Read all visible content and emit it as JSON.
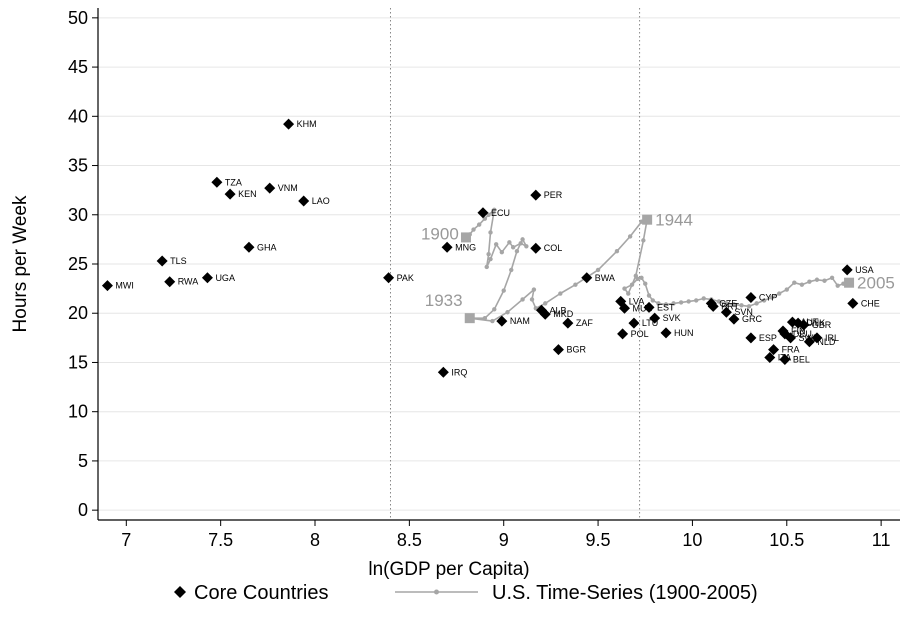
{
  "chart_data": {
    "type": "scatter",
    "xlabel": "ln(GDP per Capita)",
    "ylabel": "Hours per Week",
    "xlim": [
      6.85,
      11.1
    ],
    "ylim": [
      -1,
      51
    ],
    "x_ticks": [
      7,
      7.5,
      8,
      8.5,
      9,
      9.5,
      10,
      10.5,
      11
    ],
    "y_ticks": [
      0,
      5,
      10,
      15,
      20,
      25,
      30,
      35,
      40,
      45,
      50
    ],
    "grid": "horizontal",
    "reference_lines_x": [
      8.4,
      9.72
    ],
    "colors": {
      "core": "#000000",
      "us_series": "#a6a6a6"
    },
    "series": [
      {
        "name": "Core Countries",
        "marker": "diamond",
        "points": [
          {
            "label": "MWI",
            "x": 6.9,
            "y": 22.8
          },
          {
            "label": "TLS",
            "x": 7.19,
            "y": 25.3
          },
          {
            "label": "RWA",
            "x": 7.23,
            "y": 23.2
          },
          {
            "label": "UGA",
            "x": 7.43,
            "y": 23.6
          },
          {
            "label": "TZA",
            "x": 7.48,
            "y": 33.3
          },
          {
            "label": "KEN",
            "x": 7.55,
            "y": 32.1
          },
          {
            "label": "GHA",
            "x": 7.65,
            "y": 26.7
          },
          {
            "label": "VNM",
            "x": 7.76,
            "y": 32.7
          },
          {
            "label": "KHM",
            "x": 7.86,
            "y": 39.2
          },
          {
            "label": "LAO",
            "x": 7.94,
            "y": 31.4
          },
          {
            "label": "PAK",
            "x": 8.39,
            "y": 23.6
          },
          {
            "label": "IRQ",
            "x": 8.68,
            "y": 14.0
          },
          {
            "label": "MNG",
            "x": 8.7,
            "y": 26.7
          },
          {
            "label": "ECU",
            "x": 8.89,
            "y": 30.2
          },
          {
            "label": "NAM",
            "x": 8.99,
            "y": 19.2
          },
          {
            "label": "COL",
            "x": 9.17,
            "y": 26.6
          },
          {
            "label": "PER",
            "x": 9.17,
            "y": 32.0
          },
          {
            "label": "ALB",
            "x": 9.2,
            "y": 20.3
          },
          {
            "label": "MKD",
            "x": 9.22,
            "y": 19.9
          },
          {
            "label": "BGR",
            "x": 9.29,
            "y": 16.3
          },
          {
            "label": "ZAF",
            "x": 9.34,
            "y": 19.0
          },
          {
            "label": "BWA",
            "x": 9.44,
            "y": 23.6
          },
          {
            "label": "POL",
            "x": 9.63,
            "y": 17.9
          },
          {
            "label": "LVA",
            "x": 9.62,
            "y": 21.2
          },
          {
            "label": "MUS",
            "x": 9.64,
            "y": 20.5
          },
          {
            "label": "LTU",
            "x": 9.69,
            "y": 19.0
          },
          {
            "label": "EST",
            "x": 9.77,
            "y": 20.6
          },
          {
            "label": "SVK",
            "x": 9.8,
            "y": 19.5
          },
          {
            "label": "HUN",
            "x": 9.86,
            "y": 18.0
          },
          {
            "label": "CZE",
            "x": 10.1,
            "y": 21.0
          },
          {
            "label": "PRT",
            "x": 10.11,
            "y": 20.7
          },
          {
            "label": "SVN",
            "x": 10.18,
            "y": 20.1
          },
          {
            "label": "GRC",
            "x": 10.22,
            "y": 19.4
          },
          {
            "label": "CYP",
            "x": 10.31,
            "y": 21.6
          },
          {
            "label": "ESP",
            "x": 10.31,
            "y": 17.5
          },
          {
            "label": "ITA",
            "x": 10.41,
            "y": 15.5
          },
          {
            "label": "FRA",
            "x": 10.43,
            "y": 16.3
          },
          {
            "label": "BEL",
            "x": 10.49,
            "y": 15.3
          },
          {
            "label": "AUT",
            "x": 10.53,
            "y": 19.1
          },
          {
            "label": "DNK",
            "x": 10.56,
            "y": 19.0
          },
          {
            "label": "DEU",
            "x": 10.49,
            "y": 17.9
          },
          {
            "label": "SWE",
            "x": 10.52,
            "y": 17.5
          },
          {
            "label": "FIN",
            "x": 10.48,
            "y": 18.2
          },
          {
            "label": "GBR",
            "x": 10.59,
            "y": 18.8
          },
          {
            "label": "NLD",
            "x": 10.62,
            "y": 17.1
          },
          {
            "label": "IRL",
            "x": 10.66,
            "y": 17.5
          },
          {
            "label": "USA",
            "x": 10.82,
            "y": 24.4
          },
          {
            "label": "CHE",
            "x": 10.85,
            "y": 21.0
          }
        ]
      },
      {
        "name": "U.S. Time-Series (1900-2005)",
        "marker": "line-dot",
        "points": [
          {
            "x": 8.8,
            "y": 27.7
          },
          {
            "x": 8.82,
            "y": 28.0
          },
          {
            "x": 8.84,
            "y": 28.5
          },
          {
            "x": 8.87,
            "y": 29.0
          },
          {
            "x": 8.9,
            "y": 29.6
          },
          {
            "x": 8.92,
            "y": 30.0
          },
          {
            "x": 8.95,
            "y": 30.5
          },
          {
            "x": 8.93,
            "y": 28.2
          },
          {
            "x": 8.92,
            "y": 26.0
          },
          {
            "x": 8.91,
            "y": 24.7
          },
          {
            "x": 8.93,
            "y": 25.5
          },
          {
            "x": 8.96,
            "y": 27.0
          },
          {
            "x": 8.99,
            "y": 26.2
          },
          {
            "x": 9.03,
            "y": 27.2
          },
          {
            "x": 9.05,
            "y": 26.7
          },
          {
            "x": 9.09,
            "y": 27.1
          },
          {
            "x": 9.12,
            "y": 26.8
          },
          {
            "x": 9.1,
            "y": 27.5
          },
          {
            "x": 9.07,
            "y": 26.3
          },
          {
            "x": 9.04,
            "y": 24.4
          },
          {
            "x": 9.0,
            "y": 22.3
          },
          {
            "x": 8.95,
            "y": 20.4
          },
          {
            "x": 8.9,
            "y": 19.5
          },
          {
            "x": 8.82,
            "y": 19.5
          },
          {
            "x": 8.94,
            "y": 19.2
          },
          {
            "x": 9.02,
            "y": 20.1
          },
          {
            "x": 9.1,
            "y": 21.4
          },
          {
            "x": 9.16,
            "y": 22.4
          },
          {
            "x": 9.15,
            "y": 21.4
          },
          {
            "x": 9.17,
            "y": 20.5
          },
          {
            "x": 9.22,
            "y": 21.0
          },
          {
            "x": 9.3,
            "y": 22.0
          },
          {
            "x": 9.38,
            "y": 22.9
          },
          {
            "x": 9.5,
            "y": 24.4
          },
          {
            "x": 9.6,
            "y": 26.3
          },
          {
            "x": 9.67,
            "y": 27.8
          },
          {
            "x": 9.73,
            "y": 29.3
          },
          {
            "x": 9.76,
            "y": 29.5
          },
          {
            "x": 9.74,
            "y": 27.4
          },
          {
            "x": 9.7,
            "y": 23.8
          },
          {
            "x": 9.66,
            "y": 22.0
          },
          {
            "x": 9.64,
            "y": 22.5
          },
          {
            "x": 9.68,
            "y": 22.9
          },
          {
            "x": 9.71,
            "y": 23.5
          },
          {
            "x": 9.73,
            "y": 23.6
          },
          {
            "x": 9.75,
            "y": 23.0
          },
          {
            "x": 9.77,
            "y": 21.8
          },
          {
            "x": 9.79,
            "y": 21.3
          },
          {
            "x": 9.82,
            "y": 21.0
          },
          {
            "x": 9.86,
            "y": 20.9
          },
          {
            "x": 9.9,
            "y": 21.0
          },
          {
            "x": 9.94,
            "y": 21.1
          },
          {
            "x": 9.98,
            "y": 21.2
          },
          {
            "x": 10.02,
            "y": 21.3
          },
          {
            "x": 10.06,
            "y": 21.5
          },
          {
            "x": 10.1,
            "y": 21.4
          },
          {
            "x": 10.14,
            "y": 21.2
          },
          {
            "x": 10.18,
            "y": 21.0
          },
          {
            "x": 10.22,
            "y": 20.9
          },
          {
            "x": 10.26,
            "y": 20.8
          },
          {
            "x": 10.3,
            "y": 20.7
          },
          {
            "x": 10.34,
            "y": 21.0
          },
          {
            "x": 10.38,
            "y": 21.3
          },
          {
            "x": 10.42,
            "y": 21.6
          },
          {
            "x": 10.46,
            "y": 22.0
          },
          {
            "x": 10.5,
            "y": 22.4
          },
          {
            "x": 10.54,
            "y": 23.1
          },
          {
            "x": 10.58,
            "y": 22.9
          },
          {
            "x": 10.62,
            "y": 23.2
          },
          {
            "x": 10.66,
            "y": 23.4
          },
          {
            "x": 10.7,
            "y": 23.3
          },
          {
            "x": 10.74,
            "y": 23.6
          },
          {
            "x": 10.77,
            "y": 22.8
          },
          {
            "x": 10.8,
            "y": 23.0
          },
          {
            "x": 10.83,
            "y": 23.1
          }
        ],
        "year_labels": [
          {
            "label": "1900",
            "x": 8.8,
            "y": 27.7
          },
          {
            "label": "1933",
            "x": 8.82,
            "y": 19.5
          },
          {
            "label": "1944",
            "x": 9.76,
            "y": 29.5
          },
          {
            "label": "2005",
            "x": 10.83,
            "y": 23.1
          }
        ]
      }
    ]
  }
}
